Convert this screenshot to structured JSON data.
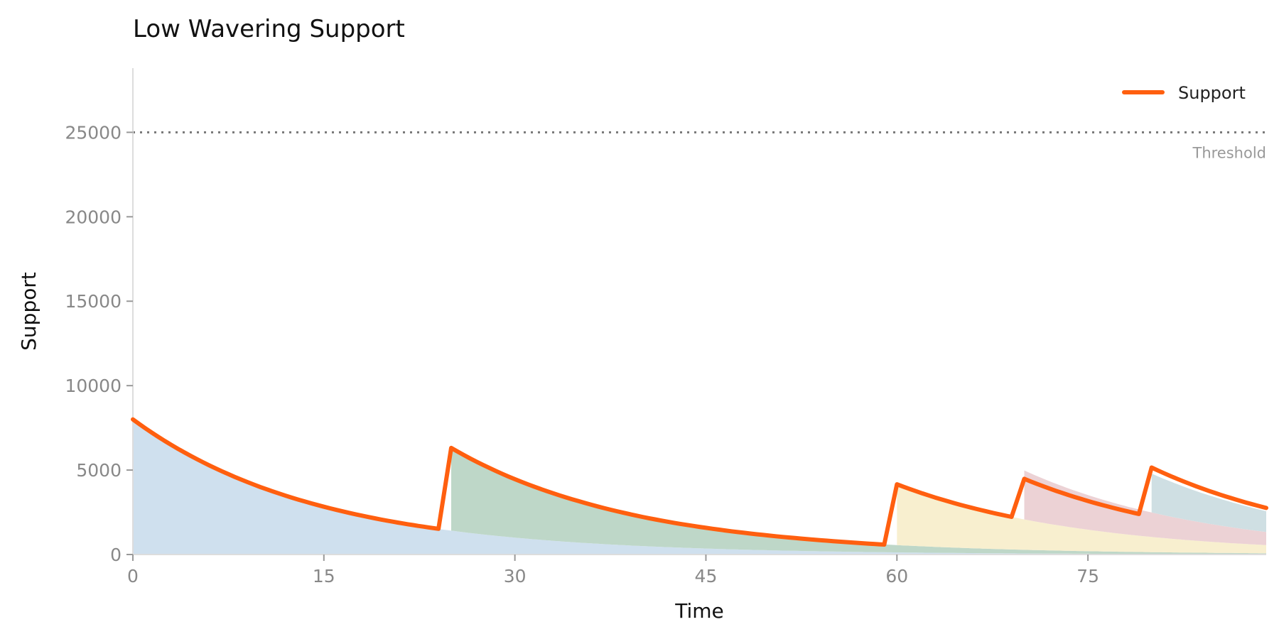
{
  "chart_data": {
    "type": "area",
    "title": "Low Wavering Support",
    "xlabel": "Time",
    "ylabel": "Support",
    "xlim": [
      0,
      89
    ],
    "ylim": [
      0,
      28800
    ],
    "x_ticks": [
      0,
      15,
      30,
      45,
      60,
      75
    ],
    "y_ticks": [
      0,
      5000,
      10000,
      15000,
      20000,
      25000
    ],
    "grid": false,
    "legend": {
      "position": "top-right",
      "entries": [
        "Support"
      ]
    },
    "threshold": {
      "value": 25000,
      "label": "Threshold"
    },
    "line_color": "#ff5f0f",
    "contributions": [
      {
        "start": 0,
        "initial": 8000,
        "half_life": 10,
        "color": "#cfe0ee"
      },
      {
        "start": 25,
        "initial": 4900,
        "half_life": 10,
        "color": "#bed7c8"
      },
      {
        "start": 60,
        "initial": 3600,
        "half_life": 10,
        "color": "#f8efcf"
      },
      {
        "start": 70,
        "initial": 2900,
        "half_life": 10,
        "color": "#ecd2d5"
      },
      {
        "start": 80,
        "initial": 2300,
        "half_life": 10,
        "color": "#cfdfe3"
      }
    ],
    "series": [
      {
        "name": "Support",
        "x": [
          0,
          5,
          10,
          15,
          20,
          24,
          25,
          30,
          35,
          40,
          45,
          50,
          55,
          59,
          60,
          65,
          69,
          70,
          75,
          79,
          80,
          85,
          89
        ],
        "y": [
          8000,
          5660,
          4000,
          2830,
          2000,
          1520,
          6310,
          4460,
          3160,
          2230,
          1580,
          1120,
          790,
          590,
          4160,
          2940,
          2230,
          4480,
          3170,
          2400,
          5150,
          3640,
          2760
        ]
      }
    ]
  }
}
